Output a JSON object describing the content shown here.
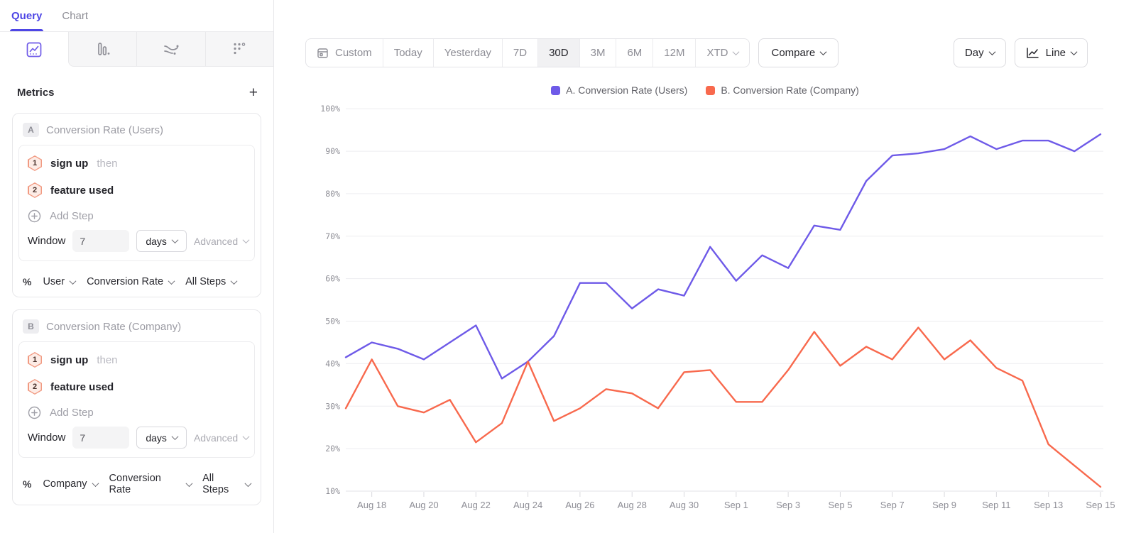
{
  "sidebar": {
    "tabs": [
      {
        "label": "Query"
      },
      {
        "label": "Chart"
      }
    ],
    "chart_type_tabs": [
      "insights-line-icon",
      "funnel-bars-icon",
      "flows-icon",
      "retention-dots-icon"
    ],
    "metrics_header": {
      "title": "Metrics",
      "add_label": "+"
    },
    "metrics": [
      {
        "id": "A",
        "title": "Conversion Rate (Users)",
        "steps": [
          {
            "num": "1",
            "event": "sign up",
            "suffix": "then"
          },
          {
            "num": "2",
            "event": "feature used",
            "suffix": ""
          }
        ],
        "add_step_label": "Add Step",
        "window": {
          "label": "Window",
          "value": "7",
          "unit": "days",
          "advanced_label": "Advanced"
        },
        "measure": {
          "symbol": "%",
          "entity": "User",
          "metric": "Conversion Rate",
          "steps_scope": "All Steps"
        }
      },
      {
        "id": "B",
        "title": "Conversion Rate (Company)",
        "steps": [
          {
            "num": "1",
            "event": "sign up",
            "suffix": "then"
          },
          {
            "num": "2",
            "event": "feature used",
            "suffix": ""
          }
        ],
        "add_step_label": "Add Step",
        "window": {
          "label": "Window",
          "value": "7",
          "unit": "days",
          "advanced_label": "Advanced"
        },
        "measure": {
          "symbol": "%",
          "entity": "Company",
          "metric": "Conversion Rate",
          "steps_scope": "All Steps"
        }
      }
    ]
  },
  "toolbar": {
    "date_ranges": [
      {
        "label": "Custom"
      },
      {
        "label": "Today"
      },
      {
        "label": "Yesterday"
      },
      {
        "label": "7D"
      },
      {
        "label": "30D"
      },
      {
        "label": "3M"
      },
      {
        "label": "6M"
      },
      {
        "label": "12M"
      },
      {
        "label": "XTD"
      }
    ],
    "active_range": "30D",
    "compare_label": "Compare",
    "granularity_label": "Day",
    "chart_style_label": "Line"
  },
  "legend": [
    {
      "label": "A. Conversion Rate (Users)",
      "color": "#6e5ae8"
    },
    {
      "label": "B. Conversion Rate (Company)",
      "color": "#f8694d"
    }
  ],
  "chart_data": {
    "type": "line",
    "x": [
      "Aug 17",
      "Aug 18",
      "Aug 19",
      "Aug 20",
      "Aug 21",
      "Aug 22",
      "Aug 23",
      "Aug 24",
      "Aug 25",
      "Aug 26",
      "Aug 27",
      "Aug 28",
      "Aug 29",
      "Aug 30",
      "Aug 31",
      "Sep 1",
      "Sep 2",
      "Sep 3",
      "Sep 4",
      "Sep 5",
      "Sep 6",
      "Sep 7",
      "Sep 8",
      "Sep 9",
      "Sep 10",
      "Sep 11",
      "Sep 12",
      "Sep 13",
      "Sep 14",
      "Sep 15"
    ],
    "series": [
      {
        "name": "A. Conversion Rate (Users)",
        "color": "#6e5ae8",
        "values": [
          41.5,
          45,
          43.5,
          41,
          45,
          49,
          36.5,
          40.5,
          46.5,
          59,
          59,
          53,
          57.5,
          56,
          67.5,
          59.5,
          65.5,
          62.5,
          72.5,
          71.5,
          83,
          89,
          89.5,
          90.5,
          93.5,
          90.5,
          92.5,
          92.5,
          90,
          94
        ]
      },
      {
        "name": "B. Conversion Rate (Company)",
        "color": "#f8694d",
        "values": [
          29.5,
          41,
          30,
          28.5,
          31.5,
          21.5,
          26,
          40.5,
          26.5,
          29.5,
          34,
          33,
          29.5,
          38,
          38.5,
          31,
          31,
          38.5,
          47.5,
          39.5,
          44,
          41,
          48.5,
          41,
          45.5,
          39,
          36,
          21,
          16,
          11
        ]
      }
    ],
    "title": "",
    "xlabel": "",
    "ylabel": "",
    "ylim": [
      10,
      100
    ],
    "y_tick_step": 10,
    "y_tick_labels": [
      "10%",
      "20%",
      "30%",
      "40%",
      "50%",
      "60%",
      "70%",
      "80%",
      "90%",
      "100%"
    ],
    "x_tick_labels_every": 2,
    "x_tick_start_index": 1,
    "grid": "horizontal",
    "legend_position": "top-center"
  }
}
